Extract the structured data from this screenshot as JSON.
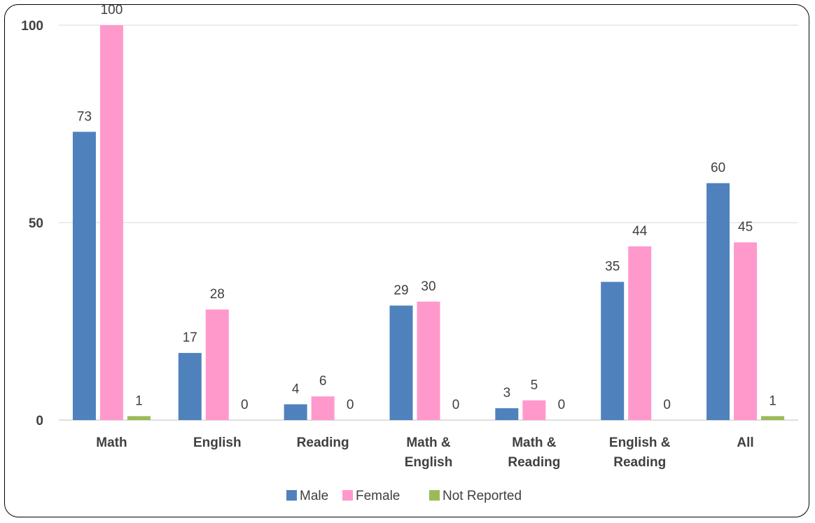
{
  "chart_data": {
    "type": "bar",
    "categories": [
      [
        "Math"
      ],
      [
        "English"
      ],
      [
        "Reading"
      ],
      [
        "Math &",
        "English"
      ],
      [
        "Math &",
        "Reading"
      ],
      [
        "English &",
        "Reading"
      ],
      [
        "All"
      ]
    ],
    "series": [
      {
        "name": "Male",
        "color": "#4f81bd",
        "values": [
          73,
          17,
          4,
          29,
          3,
          35,
          60
        ]
      },
      {
        "name": "Female",
        "color": "#ff99cc",
        "values": [
          100,
          28,
          6,
          30,
          5,
          44,
          45
        ]
      },
      {
        "name": "Not Reported",
        "color": "#9bbb59",
        "values": [
          1,
          0,
          0,
          0,
          0,
          0,
          1
        ]
      }
    ],
    "yticks": [
      0,
      50,
      100
    ],
    "ylim": [
      0,
      100
    ],
    "grid": true,
    "legend": "bottom",
    "title": "",
    "xlabel": "",
    "ylabel": ""
  }
}
